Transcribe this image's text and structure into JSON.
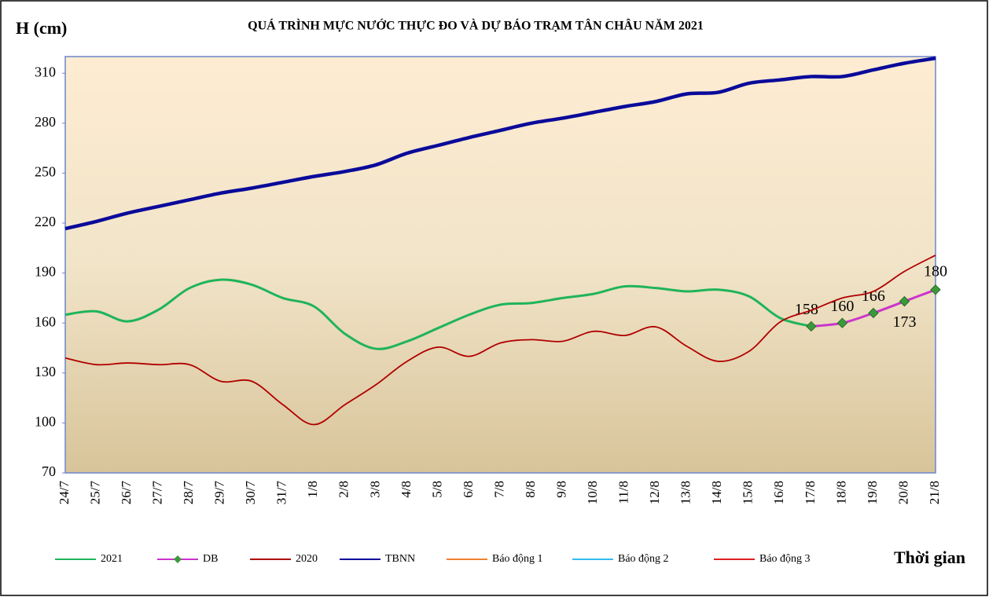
{
  "chart_data": {
    "type": "line",
    "title": "QUÁ TRÌNH MỰC NƯỚC THỰC ĐO VÀ DỰ BÁO TRẠM TÂN CHÂU NĂM 2021",
    "y_label": "H (cm)",
    "x_label": "Thời gian",
    "categories": [
      "24/7",
      "25/7",
      "26/7",
      "27/7",
      "28/7",
      "29/7",
      "30/7",
      "31/7",
      "1/8",
      "2/8",
      "3/8",
      "4/8",
      "5/8",
      "6/8",
      "7/8",
      "8/8",
      "9/8",
      "10/8",
      "11/8",
      "12/8",
      "13/8",
      "14/8",
      "15/8",
      "16/8",
      "17/8",
      "18/8",
      "19/8",
      "20/8",
      "21/8"
    ],
    "ylim": [
      70,
      320
    ],
    "yticks": [
      70,
      100,
      130,
      160,
      190,
      220,
      250,
      280,
      310
    ],
    "grid": false,
    "series": [
      {
        "name": "2021",
        "color": "#1fb45a",
        "values": [
          165,
          167,
          161,
          168,
          181,
          186,
          183,
          175,
          170,
          153.5,
          144.5,
          149,
          157,
          165,
          171,
          172,
          175,
          177.5,
          182,
          181,
          179,
          180,
          176,
          163,
          158,
          null,
          null,
          null,
          null
        ]
      },
      {
        "name": "DB",
        "color": "#cc33cc",
        "marker_color": "#3a9a3a",
        "values": [
          null,
          null,
          null,
          null,
          null,
          null,
          null,
          null,
          null,
          null,
          null,
          null,
          null,
          null,
          null,
          null,
          null,
          null,
          null,
          null,
          null,
          null,
          null,
          null,
          158,
          160,
          166,
          173,
          180
        ]
      },
      {
        "name": "2020",
        "color": "#b00000",
        "values": [
          139,
          135,
          136,
          135,
          135,
          125,
          125,
          111,
          99,
          111,
          123,
          137,
          145.5,
          140,
          148,
          150,
          149,
          155,
          152.5,
          157.7,
          146,
          137,
          143,
          160.6,
          167.6,
          175,
          179,
          191,
          200.7
        ]
      },
      {
        "name": "TBNN",
        "color": "#0a0a9a",
        "values": [
          216.7,
          221,
          226,
          230,
          234,
          238,
          241,
          244.5,
          248,
          251,
          255,
          262,
          266.7,
          271.4,
          275.7,
          280,
          283,
          286.5,
          290,
          293,
          297.6,
          298.5,
          304,
          306,
          308,
          308,
          312,
          316,
          319
        ]
      },
      {
        "name": "Báo động 1",
        "color": "#f08030",
        "values": [
          null,
          null,
          null,
          null,
          null,
          null,
          null,
          null,
          null,
          null,
          null,
          null,
          null,
          null,
          null,
          null,
          null,
          null,
          null,
          null,
          null,
          null,
          null,
          null,
          null,
          null,
          null,
          null,
          null
        ]
      },
      {
        "name": "Báo động 2",
        "color": "#33bbee",
        "values": [
          null,
          null,
          null,
          null,
          null,
          null,
          null,
          null,
          null,
          null,
          null,
          null,
          null,
          null,
          null,
          null,
          null,
          null,
          null,
          null,
          null,
          null,
          null,
          null,
          null,
          null,
          null,
          null,
          null
        ]
      },
      {
        "name": "Báo động 3",
        "color": "#e02020",
        "values": [
          null,
          null,
          null,
          null,
          null,
          null,
          null,
          null,
          null,
          null,
          null,
          null,
          null,
          null,
          null,
          null,
          null,
          null,
          null,
          null,
          null,
          null,
          null,
          null,
          null,
          null,
          null,
          null,
          null
        ]
      }
    ]
  }
}
